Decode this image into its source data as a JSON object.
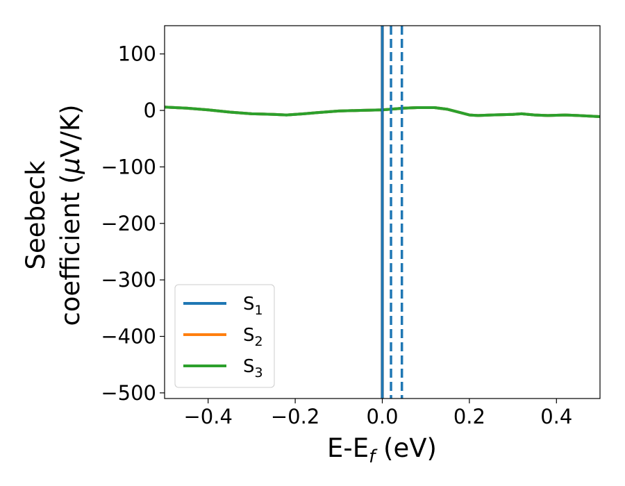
{
  "chart_data": {
    "type": "line",
    "xlabel": {
      "main": "E-E",
      "sub": "f",
      "tail": " (eV)"
    },
    "ylabel": {
      "line1": "Seebeck",
      "line2_a": "coefficient  (",
      "line2_mu": "μ",
      "line2_b": "V/K)"
    },
    "xlim": [
      -0.5,
      0.5
    ],
    "ylim": [
      -510,
      150
    ],
    "xticks": [
      -0.4,
      -0.2,
      0.0,
      0.2,
      0.4
    ],
    "xtick_labels": [
      "−0.4",
      "−0.2",
      "0.0",
      "0.2",
      "0.4"
    ],
    "yticks": [
      100,
      0,
      -100,
      -200,
      -300,
      -400,
      -500
    ],
    "ytick_labels": [
      "100",
      "0",
      "−100",
      "−200",
      "−300",
      "−400",
      "−500"
    ],
    "grid": false,
    "legend_position": "lower-left",
    "legend": [
      {
        "base": "S",
        "sub": "1",
        "color": "#1f77b4"
      },
      {
        "base": "S",
        "sub": "2",
        "color": "#ff7f0e"
      },
      {
        "base": "S",
        "sub": "3",
        "color": "#2ca02c"
      }
    ],
    "series": [
      {
        "color": "#1f77b4",
        "x": [
          -0.5,
          -0.45,
          -0.4,
          -0.35,
          -0.3,
          -0.25,
          -0.22,
          -0.18,
          -0.15,
          -0.1,
          -0.05,
          0.0,
          0.05,
          0.08,
          0.1,
          0.12,
          0.15,
          0.18,
          0.2,
          0.22,
          0.25,
          0.3,
          0.32,
          0.35,
          0.38,
          0.42,
          0.45,
          0.5
        ],
        "y": [
          6,
          4,
          1,
          -3,
          -6,
          -7,
          -8,
          -6,
          -4,
          -1,
          0,
          1,
          4,
          5,
          5,
          5,
          2,
          -4,
          -8,
          -9,
          -8,
          -7,
          -6,
          -8,
          -9,
          -8,
          -9,
          -11
        ]
      },
      {
        "color": "#ff7f0e",
        "x": [
          -0.5,
          -0.45,
          -0.4,
          -0.35,
          -0.3,
          -0.25,
          -0.22,
          -0.18,
          -0.15,
          -0.1,
          -0.05,
          0.0,
          0.05,
          0.08,
          0.1,
          0.12,
          0.15,
          0.18,
          0.2,
          0.22,
          0.25,
          0.3,
          0.32,
          0.35,
          0.38,
          0.42,
          0.45,
          0.5
        ],
        "y": [
          6,
          4,
          1,
          -3,
          -6,
          -7,
          -8,
          -6,
          -4,
          -1,
          0,
          1,
          4,
          5,
          5,
          5,
          2,
          -4,
          -8,
          -9,
          -8,
          -7,
          -6,
          -8,
          -9,
          -8,
          -9,
          -11
        ]
      },
      {
        "color": "#2ca02c",
        "x": [
          -0.5,
          -0.45,
          -0.4,
          -0.35,
          -0.3,
          -0.25,
          -0.22,
          -0.18,
          -0.15,
          -0.1,
          -0.05,
          0.0,
          0.05,
          0.08,
          0.1,
          0.12,
          0.15,
          0.18,
          0.2,
          0.22,
          0.25,
          0.3,
          0.32,
          0.35,
          0.38,
          0.42,
          0.45,
          0.5
        ],
        "y": [
          6,
          4,
          1,
          -3,
          -6,
          -7,
          -8,
          -6,
          -4,
          -1,
          0,
          1,
          4,
          5,
          5,
          5,
          2,
          -4,
          -8,
          -9,
          -8,
          -7,
          -6,
          -8,
          -9,
          -8,
          -9,
          -11
        ]
      }
    ],
    "vlines": [
      {
        "x": 0.0,
        "color": "#000000",
        "style": "solid"
      },
      {
        "x": 0.0,
        "color": "#1f77b4",
        "style": "solid"
      },
      {
        "x": 0.02,
        "color": "#1f77b4",
        "style": "dashed"
      },
      {
        "x": 0.045,
        "color": "#1f77b4",
        "style": "dashed"
      }
    ]
  }
}
